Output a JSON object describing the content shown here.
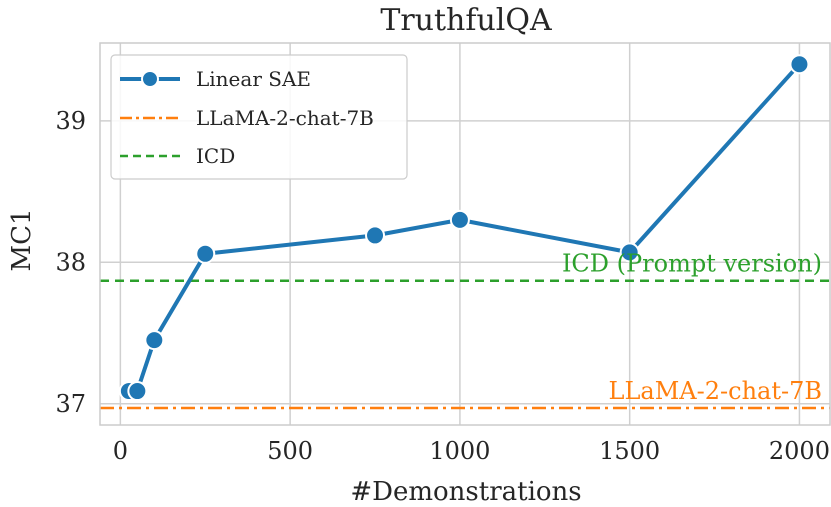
{
  "chart_data": {
    "type": "line",
    "title": "TruthfulQA",
    "xlabel": "#Demonstrations",
    "ylabel": "MC1",
    "xlim": [
      -60,
      2090
    ],
    "ylim": [
      36.85,
      39.55
    ],
    "xticks": [
      0,
      500,
      1000,
      1500,
      2000
    ],
    "yticks": [
      37,
      38,
      39
    ],
    "xtick_labels": [
      "0",
      "500",
      "1000",
      "1500",
      "2000"
    ],
    "ytick_labels": [
      "37",
      "38",
      "39"
    ],
    "grid": true,
    "legend_position": "top-left",
    "series": [
      {
        "name": "Linear SAE",
        "style": "solid-line-with-markers",
        "color": "#1f77b4",
        "x": [
          25,
          50,
          100,
          250,
          750,
          1000,
          1500,
          2000
        ],
        "values": [
          37.09,
          37.09,
          37.45,
          38.06,
          38.19,
          38.3,
          38.07,
          39.4
        ]
      },
      {
        "name": "LLaMA-2-chat-7B",
        "style": "dash-dot-horizontal",
        "color": "#ff7f0e",
        "value": 36.97
      },
      {
        "name": "ICD",
        "style": "dashed-horizontal",
        "color": "#2ca02c",
        "value": 37.87
      }
    ],
    "annotations": [
      {
        "text": "ICD (Prompt version)",
        "color": "#2ca02c",
        "series": "ICD"
      },
      {
        "text": "LLaMA-2-chat-7B",
        "color": "#ff7f0e",
        "series": "LLaMA-2-chat-7B"
      }
    ]
  }
}
